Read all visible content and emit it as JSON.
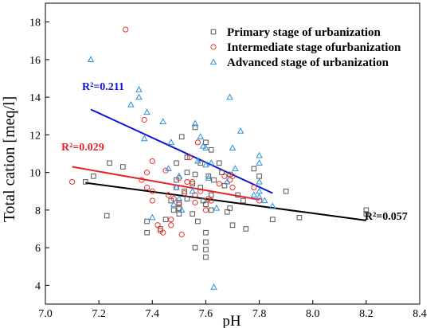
{
  "chart_data": {
    "type": "scatter",
    "xlabel": "pH",
    "ylabel": "Total cation [meq/l]",
    "xlim": [
      7.0,
      8.4
    ],
    "ylim": [
      3.0,
      19.0
    ],
    "xticks": [
      "7.0",
      "7.2",
      "7.4",
      "7.6",
      "7.8",
      "8.0",
      "8.2",
      "8.4"
    ],
    "yticks": [
      "4",
      "6",
      "8",
      "10",
      "12",
      "14",
      "16",
      "18"
    ],
    "xtick_values": [
      7.0,
      7.2,
      7.4,
      7.6,
      7.8,
      8.0,
      8.2,
      8.4
    ],
    "ytick_values": [
      4,
      6,
      8,
      10,
      12,
      14,
      16,
      18
    ],
    "grid": false,
    "legend_position": "top-right",
    "series": [
      {
        "name": "Primary stage of urbanization",
        "marker": "square",
        "color": "#555555",
        "points": [
          [
            7.15,
            9.5
          ],
          [
            7.18,
            9.8
          ],
          [
            7.23,
            7.7
          ],
          [
            7.24,
            10.5
          ],
          [
            7.29,
            10.3
          ],
          [
            7.38,
            6.8
          ],
          [
            7.38,
            7.4
          ],
          [
            7.43,
            7.0
          ],
          [
            7.45,
            7.5
          ],
          [
            7.47,
            8.5
          ],
          [
            7.48,
            8.0
          ],
          [
            7.49,
            10.5
          ],
          [
            7.49,
            9.6
          ],
          [
            7.5,
            8.4
          ],
          [
            7.5,
            8.1
          ],
          [
            7.5,
            7.8
          ],
          [
            7.51,
            11.9
          ],
          [
            7.52,
            9.0
          ],
          [
            7.53,
            10.8
          ],
          [
            7.53,
            10.0
          ],
          [
            7.53,
            8.6
          ],
          [
            7.55,
            7.8
          ],
          [
            7.55,
            9.4
          ],
          [
            7.56,
            12.4
          ],
          [
            7.56,
            9.9
          ],
          [
            7.56,
            6.0
          ],
          [
            7.57,
            7.4
          ],
          [
            7.58,
            10.5
          ],
          [
            7.58,
            9.2
          ],
          [
            7.59,
            8.5
          ],
          [
            7.6,
            11.6
          ],
          [
            7.6,
            8.3
          ],
          [
            7.6,
            6.8
          ],
          [
            7.6,
            6.3
          ],
          [
            7.6,
            5.9
          ],
          [
            7.6,
            5.5
          ],
          [
            7.61,
            9.8
          ],
          [
            7.62,
            11.2
          ],
          [
            7.62,
            8.8
          ],
          [
            7.62,
            8.0
          ],
          [
            7.63,
            9.6
          ],
          [
            7.65,
            10.5
          ],
          [
            7.66,
            10.0
          ],
          [
            7.67,
            9.3
          ],
          [
            7.68,
            7.9
          ],
          [
            7.69,
            9.9
          ],
          [
            7.69,
            8.1
          ],
          [
            7.7,
            7.2
          ],
          [
            7.72,
            8.8
          ],
          [
            7.74,
            8.5
          ],
          [
            7.75,
            7.0
          ],
          [
            7.78,
            10.2
          ],
          [
            7.8,
            9.8
          ],
          [
            7.85,
            7.5
          ],
          [
            7.9,
            9.0
          ],
          [
            7.95,
            7.6
          ],
          [
            8.2,
            8.0
          ],
          [
            8.2,
            7.8
          ]
        ],
        "trend": {
          "label": "R²=0.057",
          "x": [
            7.15,
            8.2
          ],
          "y": [
            9.45,
            7.45
          ],
          "color": "#000000"
        }
      },
      {
        "name": "Intermediate stage ofurbanization",
        "marker": "circle",
        "color": "#e8302a",
        "points": [
          [
            7.1,
            9.5
          ],
          [
            7.3,
            17.6
          ],
          [
            7.36,
            9.6
          ],
          [
            7.37,
            12.8
          ],
          [
            7.38,
            9.2
          ],
          [
            7.38,
            10.0
          ],
          [
            7.4,
            10.6
          ],
          [
            7.4,
            9.0
          ],
          [
            7.4,
            8.5
          ],
          [
            7.42,
            7.2
          ],
          [
            7.43,
            6.9
          ],
          [
            7.44,
            6.8
          ],
          [
            7.45,
            10.1
          ],
          [
            7.46,
            8.8
          ],
          [
            7.47,
            7.2
          ],
          [
            7.47,
            7.5
          ],
          [
            7.48,
            8.6
          ],
          [
            7.49,
            9.2
          ],
          [
            7.5,
            9.7
          ],
          [
            7.5,
            8.3
          ],
          [
            7.51,
            6.7
          ],
          [
            7.52,
            8.9
          ],
          [
            7.53,
            9.5
          ],
          [
            7.54,
            10.8
          ],
          [
            7.55,
            9.5
          ],
          [
            7.56,
            8.8
          ],
          [
            7.56,
            8.4
          ],
          [
            7.57,
            11.6
          ],
          [
            7.58,
            9.0
          ],
          [
            7.6,
            8.0
          ],
          [
            7.61,
            8.6
          ],
          [
            7.62,
            8.5
          ],
          [
            7.65,
            9.4
          ],
          [
            7.67,
            9.8
          ],
          [
            7.69,
            9.6
          ],
          [
            7.7,
            9.8
          ],
          [
            7.7,
            9.2
          ],
          [
            7.78,
            9.2
          ],
          [
            7.8,
            8.5
          ]
        ],
        "trend": {
          "label": "R²=0.029",
          "x": [
            7.1,
            7.8
          ],
          "y": [
            10.3,
            8.55
          ],
          "color": "#e8232a"
        }
      },
      {
        "name": "Advanced stage of urbanization",
        "marker": "triangle",
        "color": "#2a8fe0",
        "points": [
          [
            7.17,
            16.0
          ],
          [
            7.32,
            13.6
          ],
          [
            7.35,
            14.4
          ],
          [
            7.35,
            14.0
          ],
          [
            7.37,
            11.8
          ],
          [
            7.38,
            13.2
          ],
          [
            7.4,
            7.6
          ],
          [
            7.44,
            12.7
          ],
          [
            7.46,
            10.2
          ],
          [
            7.47,
            11.6
          ],
          [
            7.48,
            8.3
          ],
          [
            7.49,
            9.2
          ],
          [
            7.5,
            9.8
          ],
          [
            7.5,
            8.6
          ],
          [
            7.51,
            8.0
          ],
          [
            7.55,
            9.0
          ],
          [
            7.56,
            12.6
          ],
          [
            7.57,
            10.6
          ],
          [
            7.58,
            11.9
          ],
          [
            7.59,
            11.4
          ],
          [
            7.6,
            11.3
          ],
          [
            7.6,
            10.4
          ],
          [
            7.61,
            9.7
          ],
          [
            7.62,
            10.5
          ],
          [
            7.63,
            3.9
          ],
          [
            7.64,
            8.1
          ],
          [
            7.68,
            9.5
          ],
          [
            7.69,
            14.0
          ],
          [
            7.7,
            11.3
          ],
          [
            7.71,
            10.2
          ],
          [
            7.73,
            12.2
          ],
          [
            7.78,
            8.8
          ],
          [
            7.8,
            10.9
          ],
          [
            7.8,
            10.5
          ],
          [
            7.8,
            9.5
          ],
          [
            7.8,
            9.0
          ],
          [
            7.8,
            8.7
          ],
          [
            7.82,
            8.5
          ],
          [
            7.85,
            8.2
          ]
        ],
        "trend": {
          "label": "R²=0.211",
          "x": [
            7.17,
            7.85
          ],
          "y": [
            13.35,
            8.9
          ],
          "color": "#0a14d8"
        }
      }
    ]
  }
}
